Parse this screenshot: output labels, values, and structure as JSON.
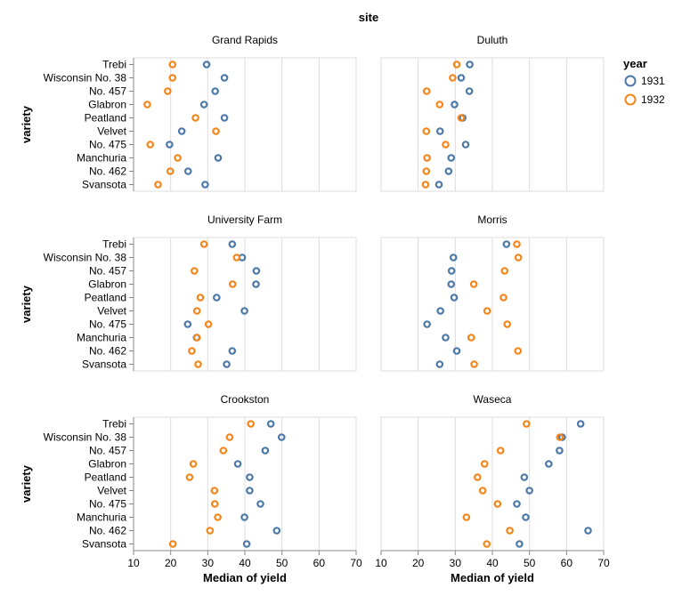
{
  "chart_data": {
    "type": "scatter",
    "title": "site",
    "xlabel": "Median of yield",
    "ylabel": "variety",
    "xlim": [
      10,
      70
    ],
    "xticks": [
      10,
      20,
      30,
      40,
      50,
      60,
      70
    ],
    "grid": true,
    "legend": {
      "title": "year",
      "placement": "top-right",
      "entries": [
        {
          "name": "1931",
          "color": "#4c78a8"
        },
        {
          "name": "1932",
          "color": "#f58518"
        }
      ]
    },
    "varieties": [
      "Trebi",
      "Wisconsin No. 38",
      "No. 457",
      "Glabron",
      "Peatland",
      "Velvet",
      "No. 475",
      "Manchuria",
      "No. 462",
      "Svansota"
    ],
    "facets": [
      {
        "site": "Grand Rapids",
        "series": [
          {
            "name": "1931",
            "values": [
              29.7,
              34.5,
              32.0,
              29.0,
              34.5,
              23.0,
              19.7,
              32.8,
              24.7,
              29.3
            ]
          },
          {
            "name": "1932",
            "values": [
              20.5,
              20.5,
              19.2,
              13.7,
              26.7,
              32.2,
              14.5,
              21.9,
              19.9,
              16.6
            ]
          }
        ]
      },
      {
        "site": "Duluth",
        "series": [
          {
            "name": "1931",
            "values": [
              33.9,
              31.6,
              33.8,
              29.8,
              32.0,
              25.9,
              32.8,
              28.9,
              28.2,
              25.6
            ]
          },
          {
            "name": "1932",
            "values": [
              30.4,
              29.3,
              22.3,
              25.8,
              31.6,
              22.2,
              27.4,
              22.4,
              22.2,
              22.0
            ]
          }
        ]
      },
      {
        "site": "University Farm",
        "series": [
          {
            "name": "1931",
            "values": [
              36.6,
              39.3,
              43.1,
              43.0,
              32.4,
              39.9,
              24.6,
              27.0,
              36.6,
              35.1
            ]
          },
          {
            "name": "1932",
            "values": [
              29.0,
              37.8,
              26.4,
              36.7,
              28.0,
              27.1,
              30.2,
              27.1,
              25.7,
              27.4
            ]
          }
        ]
      },
      {
        "site": "Morris",
        "series": [
          {
            "name": "1931",
            "values": [
              43.8,
              29.5,
              29.0,
              28.9,
              29.7,
              26.0,
              22.4,
              27.4,
              30.4,
              25.8
            ]
          },
          {
            "name": "1932",
            "values": [
              46.6,
              47.0,
              43.3,
              35.0,
              43.0,
              38.6,
              44.0,
              34.3,
              46.9,
              35.1
            ]
          }
        ]
      },
      {
        "site": "Crookston",
        "series": [
          {
            "name": "1931",
            "values": [
              47.0,
              49.9,
              45.5,
              38.1,
              41.3,
              41.3,
              44.2,
              39.9,
              48.6,
              40.5
            ]
          },
          {
            "name": "1932",
            "values": [
              41.6,
              35.9,
              34.2,
              26.1,
              25.1,
              31.8,
              31.9,
              32.7,
              30.6,
              20.6
            ]
          }
        ]
      },
      {
        "site": "Waseca",
        "series": [
          {
            "name": "1931",
            "values": [
              63.8,
              58.8,
              58.1,
              55.2,
              48.6,
              50.0,
              46.6,
              49.0,
              65.8,
              47.3
            ]
          },
          {
            "name": "1932",
            "values": [
              49.2,
              58.2,
              42.2,
              37.9,
              36.0,
              37.4,
              41.4,
              33.0,
              44.7,
              38.5
            ]
          }
        ]
      }
    ]
  }
}
